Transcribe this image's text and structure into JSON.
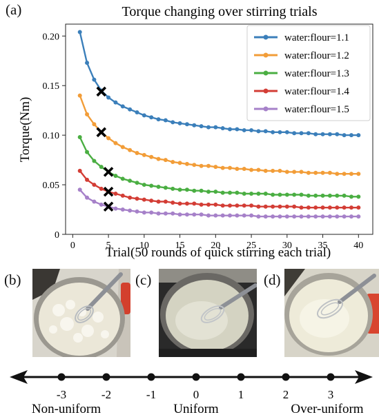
{
  "panel_a_label": "(a)",
  "panel_b_label": "(b)",
  "panel_c_label": "(c)",
  "panel_d_label": "(d)",
  "chart_data": {
    "type": "line",
    "title": "Torque changing over stirring trials",
    "xlabel": "Trial(50 rounds of quick stirring each trial)",
    "ylabel": "Torque(Nm)",
    "xlim": [
      -1,
      42
    ],
    "ylim": [
      0,
      0.212
    ],
    "xticks": [
      0,
      5,
      10,
      15,
      20,
      25,
      30,
      35,
      40
    ],
    "yticks": [
      0,
      0.05,
      0.1,
      0.15,
      0.2
    ],
    "ytick_labels": [
      "0",
      "0.05",
      "0.10",
      "0.15",
      "0.20"
    ],
    "legend_position": "top-right",
    "x": [
      1,
      2,
      3,
      4,
      5,
      6,
      7,
      8,
      9,
      10,
      11,
      12,
      13,
      14,
      15,
      16,
      17,
      18,
      19,
      20,
      21,
      22,
      23,
      24,
      25,
      26,
      27,
      28,
      29,
      30,
      31,
      32,
      33,
      34,
      35,
      36,
      37,
      38,
      39,
      40
    ],
    "series": [
      {
        "name": "water:flour=1.1",
        "color": "#3b7fba",
        "values": [
          0.204,
          0.173,
          0.156,
          0.145,
          0.138,
          0.133,
          0.129,
          0.126,
          0.123,
          0.12,
          0.118,
          0.116,
          0.115,
          0.113,
          0.112,
          0.111,
          0.11,
          0.109,
          0.108,
          0.108,
          0.107,
          0.106,
          0.106,
          0.105,
          0.105,
          0.104,
          0.104,
          0.103,
          0.103,
          0.103,
          0.102,
          0.102,
          0.102,
          0.101,
          0.101,
          0.101,
          0.101,
          0.1,
          0.1,
          0.1
        ]
      },
      {
        "name": "water:flour=1.2",
        "color": "#f29d38",
        "values": [
          0.14,
          0.121,
          0.111,
          0.103,
          0.097,
          0.092,
          0.088,
          0.085,
          0.082,
          0.08,
          0.078,
          0.076,
          0.075,
          0.073,
          0.072,
          0.071,
          0.07,
          0.069,
          0.069,
          0.068,
          0.067,
          0.067,
          0.066,
          0.066,
          0.065,
          0.065,
          0.064,
          0.064,
          0.064,
          0.063,
          0.063,
          0.063,
          0.062,
          0.062,
          0.062,
          0.062,
          0.061,
          0.061,
          0.061,
          0.061
        ]
      },
      {
        "name": "water:flour=1.3",
        "color": "#4aae42",
        "values": [
          0.098,
          0.083,
          0.074,
          0.068,
          0.063,
          0.059,
          0.056,
          0.054,
          0.052,
          0.05,
          0.049,
          0.048,
          0.047,
          0.046,
          0.045,
          0.045,
          0.044,
          0.044,
          0.043,
          0.043,
          0.042,
          0.042,
          0.042,
          0.041,
          0.041,
          0.041,
          0.041,
          0.04,
          0.04,
          0.04,
          0.04,
          0.04,
          0.039,
          0.039,
          0.039,
          0.039,
          0.039,
          0.039,
          0.038,
          0.038
        ]
      },
      {
        "name": "water:flour=1.4",
        "color": "#d33d35",
        "values": [
          0.064,
          0.055,
          0.05,
          0.046,
          0.043,
          0.041,
          0.039,
          0.037,
          0.036,
          0.035,
          0.034,
          0.033,
          0.033,
          0.032,
          0.031,
          0.031,
          0.031,
          0.03,
          0.03,
          0.03,
          0.029,
          0.029,
          0.029,
          0.029,
          0.029,
          0.028,
          0.028,
          0.028,
          0.028,
          0.028,
          0.028,
          0.027,
          0.027,
          0.027,
          0.027,
          0.027,
          0.027,
          0.027,
          0.027,
          0.027
        ]
      },
      {
        "name": "water:flour=1.5",
        "color": "#a681c9",
        "values": [
          0.045,
          0.037,
          0.033,
          0.03,
          0.028,
          0.026,
          0.025,
          0.024,
          0.023,
          0.022,
          0.022,
          0.021,
          0.021,
          0.021,
          0.02,
          0.02,
          0.02,
          0.02,
          0.019,
          0.019,
          0.019,
          0.019,
          0.019,
          0.019,
          0.019,
          0.018,
          0.018,
          0.018,
          0.018,
          0.018,
          0.018,
          0.018,
          0.018,
          0.018,
          0.018,
          0.018,
          0.018,
          0.018,
          0.018,
          0.018
        ]
      }
    ],
    "markers": [
      {
        "symbol": "x",
        "x": 4,
        "y": 0.144
      },
      {
        "symbol": "x",
        "x": 4,
        "y": 0.103
      },
      {
        "symbol": "x",
        "x": 5,
        "y": 0.063
      },
      {
        "symbol": "x",
        "x": 5,
        "y": 0.043
      },
      {
        "symbol": "x",
        "x": 5,
        "y": 0.028
      }
    ]
  },
  "photos": [
    {
      "id": "b",
      "state": "lumpy batter with whisk"
    },
    {
      "id": "c",
      "state": "smooth batter with whisk"
    },
    {
      "id": "d",
      "state": "thin glossy batter with whisk"
    }
  ],
  "uniformity_scale": {
    "ticks": [
      "-3",
      "-2",
      "-1",
      "0",
      "1",
      "2",
      "3"
    ],
    "labels": [
      "Non-uniform",
      "Uniform",
      "Over-uniform"
    ]
  }
}
